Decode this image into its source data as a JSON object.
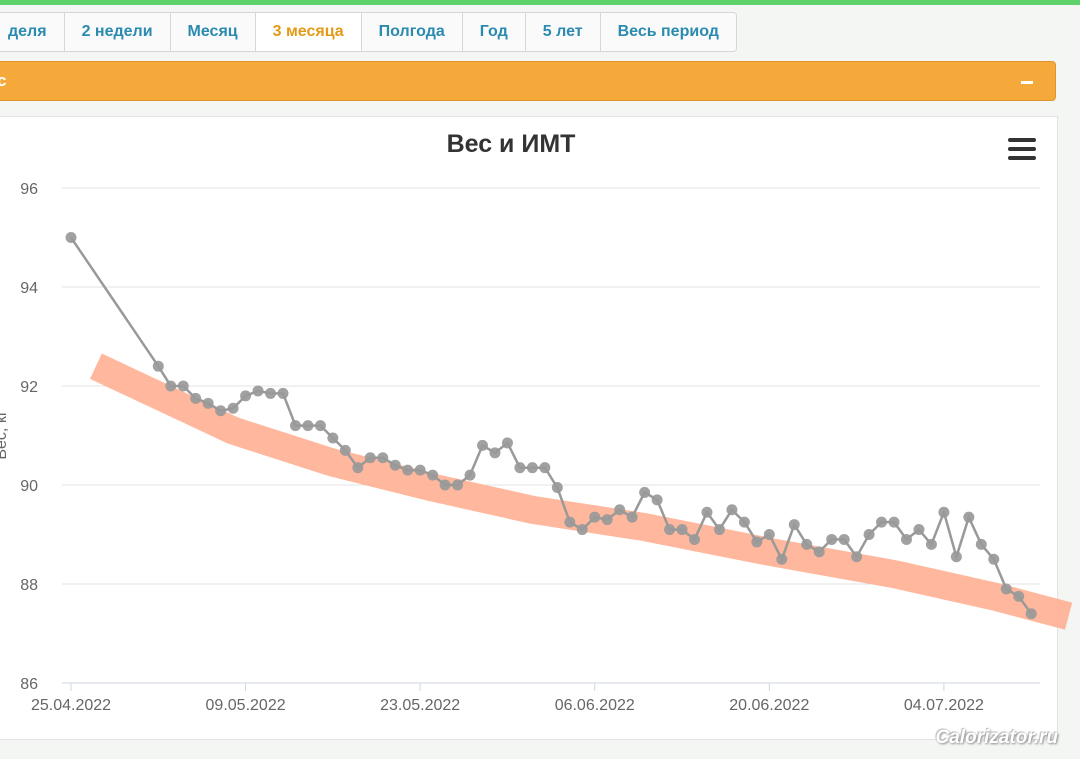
{
  "tabs": [
    {
      "label": "деля",
      "active": false
    },
    {
      "label": "2 недели",
      "active": false
    },
    {
      "label": "Месяц",
      "active": false
    },
    {
      "label": "3 месяца",
      "active": true
    },
    {
      "label": "Полгода",
      "active": false
    },
    {
      "label": "Год",
      "active": false
    },
    {
      "label": "5 лет",
      "active": false
    },
    {
      "label": "Весь период",
      "active": false
    }
  ],
  "panel": {
    "title": "с",
    "collapse_symbol": "–"
  },
  "colors": {
    "accent": "#f5a93a",
    "tab_text": "#2a8ab0",
    "tab_active": "#e49a18",
    "series": "#999999",
    "trend": "#ffb094",
    "top_bar": "#5fd16b"
  },
  "watermark": "Calorizator.ru",
  "chart_data": {
    "type": "line",
    "title": "Вес и ИМТ",
    "ylabel": "Вес, кг",
    "xlabel": "",
    "ylim": [
      86,
      96
    ],
    "yticks": [
      86,
      88,
      90,
      92,
      94,
      96
    ],
    "xticks": [
      "25.04.2022",
      "09.05.2022",
      "23.05.2022",
      "06.06.2022",
      "20.06.2022",
      "04.07.2022"
    ],
    "grid": true,
    "series": [
      {
        "values": [
          [
            "2022-04-25",
            95.0
          ],
          [
            "2022-05-02",
            92.4
          ],
          [
            "2022-05-03",
            92.0
          ],
          [
            "2022-05-04",
            92.0
          ],
          [
            "2022-05-05",
            91.75
          ],
          [
            "2022-05-06",
            91.65
          ],
          [
            "2022-05-07",
            91.5
          ],
          [
            "2022-05-08",
            91.55
          ],
          [
            "2022-05-09",
            91.8
          ],
          [
            "2022-05-10",
            91.9
          ],
          [
            "2022-05-11",
            91.85
          ],
          [
            "2022-05-12",
            91.85
          ],
          [
            "2022-05-13",
            91.2
          ],
          [
            "2022-05-14",
            91.2
          ],
          [
            "2022-05-15",
            91.2
          ],
          [
            "2022-05-16",
            90.95
          ],
          [
            "2022-05-17",
            90.7
          ],
          [
            "2022-05-18",
            90.35
          ],
          [
            "2022-05-19",
            90.55
          ],
          [
            "2022-05-20",
            90.55
          ],
          [
            "2022-05-21",
            90.4
          ],
          [
            "2022-05-22",
            90.3
          ],
          [
            "2022-05-23",
            90.3
          ],
          [
            "2022-05-24",
            90.2
          ],
          [
            "2022-05-25",
            90.0
          ],
          [
            "2022-05-26",
            90.0
          ],
          [
            "2022-05-27",
            90.2
          ],
          [
            "2022-05-28",
            90.8
          ],
          [
            "2022-05-29",
            90.65
          ],
          [
            "2022-05-30",
            90.85
          ],
          [
            "2022-05-31",
            90.35
          ],
          [
            "2022-06-01",
            90.35
          ],
          [
            "2022-06-02",
            90.35
          ],
          [
            "2022-06-03",
            89.95
          ],
          [
            "2022-06-04",
            89.25
          ],
          [
            "2022-06-05",
            89.1
          ],
          [
            "2022-06-06",
            89.35
          ],
          [
            "2022-06-07",
            89.3
          ],
          [
            "2022-06-08",
            89.5
          ],
          [
            "2022-06-09",
            89.35
          ],
          [
            "2022-06-10",
            89.85
          ],
          [
            "2022-06-11",
            89.7
          ],
          [
            "2022-06-12",
            89.1
          ],
          [
            "2022-06-13",
            89.1
          ],
          [
            "2022-06-14",
            88.9
          ],
          [
            "2022-06-15",
            89.45
          ],
          [
            "2022-06-16",
            89.1
          ],
          [
            "2022-06-17",
            89.5
          ],
          [
            "2022-06-18",
            89.25
          ],
          [
            "2022-06-19",
            88.85
          ],
          [
            "2022-06-20",
            89.0
          ],
          [
            "2022-06-21",
            88.5
          ],
          [
            "2022-06-22",
            89.2
          ],
          [
            "2022-06-23",
            88.8
          ],
          [
            "2022-06-24",
            88.65
          ],
          [
            "2022-06-25",
            88.9
          ],
          [
            "2022-06-26",
            88.9
          ],
          [
            "2022-06-27",
            88.55
          ],
          [
            "2022-06-28",
            89.0
          ],
          [
            "2022-06-29",
            89.25
          ],
          [
            "2022-06-30",
            89.25
          ],
          [
            "2022-07-01",
            88.9
          ],
          [
            "2022-07-02",
            89.1
          ],
          [
            "2022-07-03",
            88.8
          ],
          [
            "2022-07-04",
            89.45
          ],
          [
            "2022-07-05",
            88.55
          ],
          [
            "2022-07-06",
            89.35
          ],
          [
            "2022-07-07",
            88.8
          ],
          [
            "2022-07-08",
            88.5
          ],
          [
            "2022-07-09",
            87.9
          ],
          [
            "2022-07-10",
            87.75
          ],
          [
            "2022-07-11",
            87.4
          ]
        ]
      }
    ],
    "trend_band": [
      [
        "2022-04-27",
        92.4
      ],
      [
        "2022-05-08",
        91.1
      ],
      [
        "2022-05-16",
        90.45
      ],
      [
        "2022-05-24",
        89.95
      ],
      [
        "2022-06-01",
        89.5
      ],
      [
        "2022-06-10",
        89.15
      ],
      [
        "2022-06-20",
        88.65
      ],
      [
        "2022-06-30",
        88.2
      ],
      [
        "2022-07-08",
        87.75
      ],
      [
        "2022-07-14",
        87.35
      ]
    ]
  }
}
